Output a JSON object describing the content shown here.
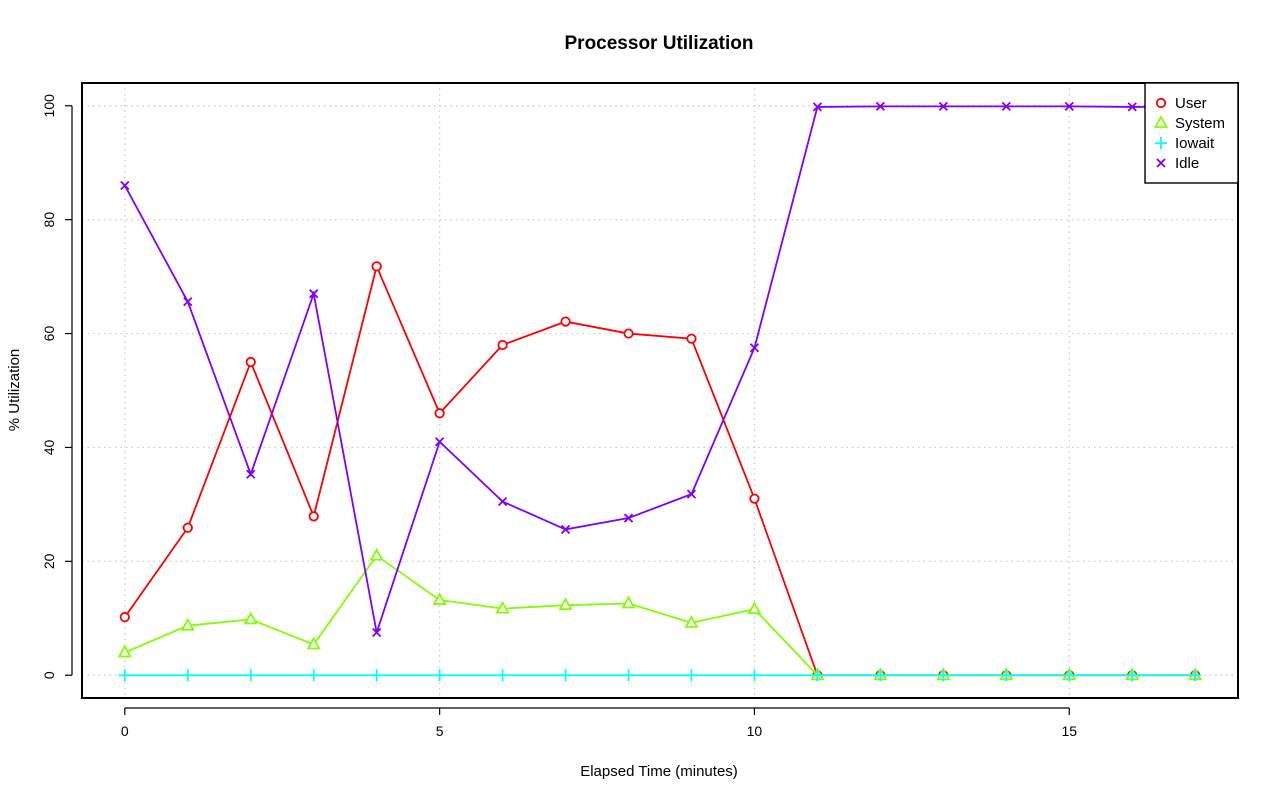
{
  "chart_data": {
    "type": "line",
    "title": "Processor Utilization",
    "xlabel": "Elapsed Time (minutes)",
    "ylabel": "% Utilization",
    "x": [
      0,
      1,
      2,
      3,
      4,
      5,
      6,
      7,
      8,
      9,
      10,
      11,
      12,
      13,
      14,
      15,
      16,
      17
    ],
    "xlim": [
      -0.68,
      17.68
    ],
    "ylim": [
      -4,
      104
    ],
    "xticks": [
      0,
      5,
      10,
      15
    ],
    "yticks": [
      0,
      20,
      40,
      60,
      80,
      100
    ],
    "grid": true,
    "legend_position": "top-right",
    "series": [
      {
        "name": "User",
        "color": "#ff0000",
        "marker": "circle",
        "values": [
          10.2,
          25.9,
          55.0,
          27.9,
          71.8,
          46.0,
          58.0,
          62.1,
          60.0,
          59.1,
          31.0,
          0,
          0,
          0,
          0,
          0,
          0,
          0
        ]
      },
      {
        "name": "System",
        "color": "#80ff00",
        "marker": "triangle",
        "values": [
          4.0,
          8.7,
          9.8,
          5.4,
          21.0,
          13.2,
          11.7,
          12.3,
          12.6,
          9.2,
          11.6,
          0,
          0,
          0,
          0,
          0,
          0,
          0
        ]
      },
      {
        "name": "Iowait",
        "color": "#00ffff",
        "marker": "plus",
        "values": [
          0,
          0,
          0,
          0,
          0,
          0,
          0,
          0,
          0,
          0,
          0,
          0,
          0,
          0,
          0,
          0,
          0,
          0
        ]
      },
      {
        "name": "Idle",
        "color": "#8000ff",
        "marker": "cross",
        "values": [
          86.0,
          65.6,
          35.3,
          67.0,
          7.5,
          41.0,
          30.5,
          25.6,
          27.6,
          31.8,
          57.5,
          99.8,
          99.9,
          99.9,
          99.9,
          99.9,
          99.8,
          99.9
        ]
      }
    ]
  }
}
